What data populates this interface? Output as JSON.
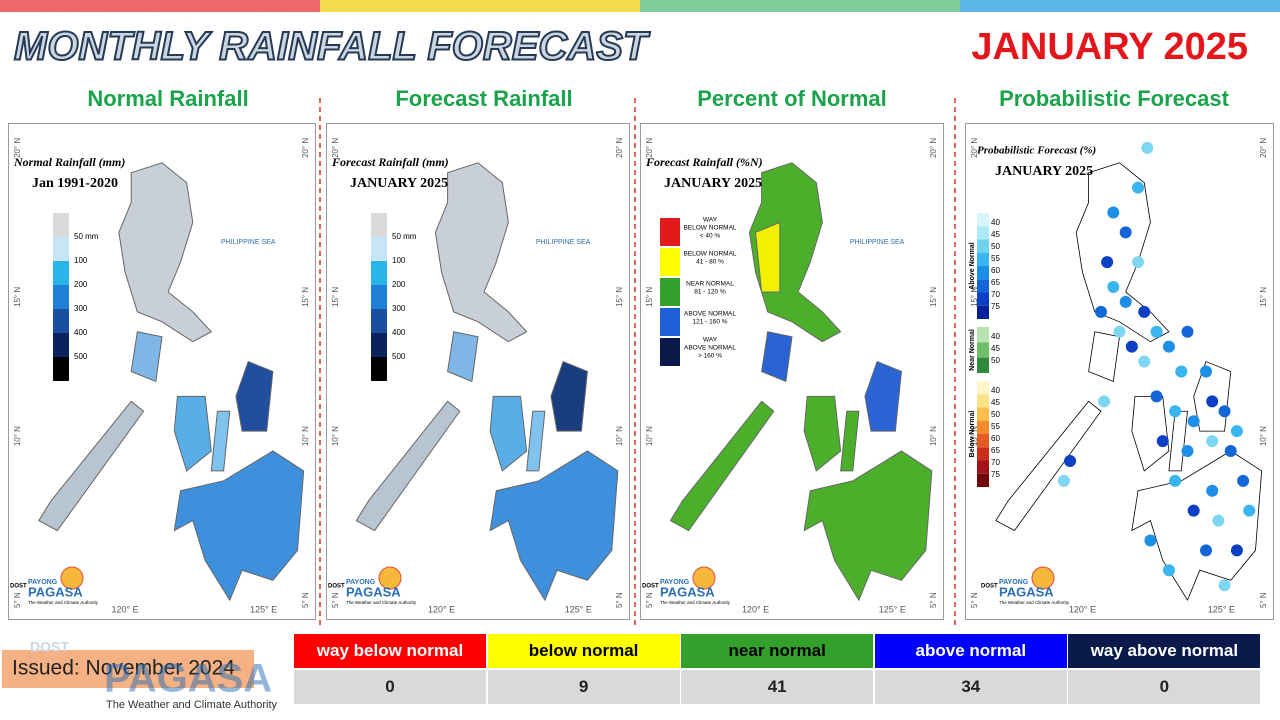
{
  "header": {
    "title": "MONTHLY RAINFALL FORECAST",
    "period": "JANUARY 2025"
  },
  "map_labels": {
    "lat": [
      "20° N",
      "15° N",
      "10° N",
      "5° N"
    ],
    "lon": [
      "120° E",
      "125° E"
    ],
    "sea": "PHILIPPINE SEA",
    "logo": {
      "agency": "DOST",
      "brand_top": "PAYONG",
      "brand": "PAGASA",
      "tagline": "The Weather and Climate Authority"
    }
  },
  "panels": [
    {
      "heading": "Normal Rainfall",
      "map_title": "Normal Rainfall (mm)",
      "map_subtitle": "Jan 1991-2020",
      "legend": [
        "50 mm",
        "100",
        "200",
        "300",
        "400",
        "500"
      ]
    },
    {
      "heading": "Forecast Rainfall",
      "map_title": "Forecast Rainfall (mm)",
      "map_subtitle": "JANUARY 2025",
      "legend": [
        "50 mm",
        "100",
        "200",
        "300",
        "400",
        "500"
      ]
    },
    {
      "heading": "Percent of Normal",
      "map_title": "Forecast Rainfall (%N)",
      "map_subtitle": "JANUARY 2025",
      "legend": [
        [
          "WAY",
          "BELOW NORMAL",
          "< 40 %"
        ],
        [
          "BELOW NORMAL",
          "41 - 80 %"
        ],
        [
          "NEAR NORMAL",
          "81 - 120 %"
        ],
        [
          "ABOVE NORMAL",
          "121 - 160 %"
        ],
        [
          "WAY",
          "ABOVE NORMAL",
          "> 160 %"
        ]
      ]
    },
    {
      "heading": "Probabilistic Forecast",
      "map_title": "Probabilistic Forecast (%)",
      "map_subtitle": "JANUARY 2025",
      "legend_groups": [
        {
          "name": "Above Normal",
          "levels": [
            40,
            45,
            50,
            55,
            60,
            65,
            70,
            75
          ]
        },
        {
          "name": "Near Normal",
          "levels": [
            40,
            45,
            50
          ]
        },
        {
          "name": "Below Normal",
          "levels": [
            40,
            45,
            50,
            55,
            60,
            65,
            70,
            75
          ]
        }
      ]
    }
  ],
  "summary": {
    "headers": [
      "way below normal",
      "below normal",
      "near normal",
      "above normal",
      "way above normal"
    ],
    "counts": [
      0,
      9,
      41,
      34,
      0
    ]
  },
  "issued": "Issued: November 2024",
  "footer_logo": {
    "agency": "DOST",
    "brand": "PAGASA",
    "tagline": "The Weather and Climate Authority"
  }
}
